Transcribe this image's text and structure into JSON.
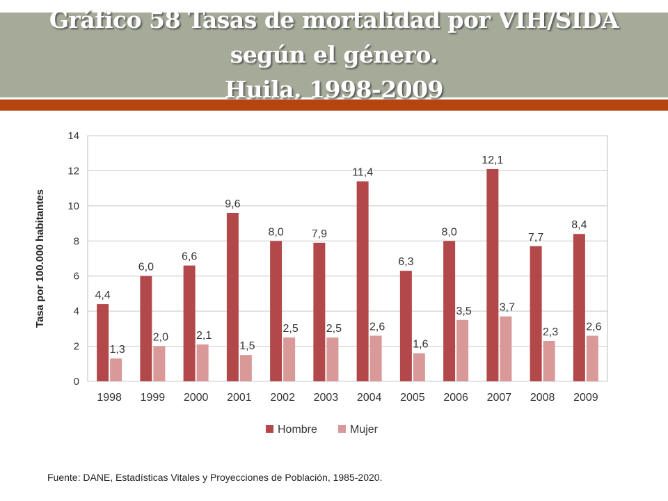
{
  "header": {
    "title_line1": "Gráfico 58 Tasas de mortalidad por VIH/SIDA según el género.",
    "title_line2": "Huila.  1998-2009"
  },
  "colors": {
    "header_bg": "#a6ab99",
    "accent": "#b5440f",
    "hombre": "#b2484a",
    "mujer": "#d99998"
  },
  "chart_data": {
    "type": "bar",
    "categories": [
      "1998",
      "1999",
      "2000",
      "2001",
      "2002",
      "2003",
      "2004",
      "2005",
      "2006",
      "2007",
      "2008",
      "2009"
    ],
    "series": [
      {
        "name": "Hombre",
        "values": [
          4.4,
          6.0,
          6.6,
          9.6,
          8.0,
          7.9,
          11.4,
          6.3,
          8.0,
          12.1,
          7.7,
          8.4
        ],
        "labels": [
          "4,4",
          "6,0",
          "6,6",
          "9,6",
          "8,0",
          "7,9",
          "11,4",
          "6,3",
          "8,0",
          "12,1",
          "7,7",
          "8,4"
        ]
      },
      {
        "name": "Mujer",
        "values": [
          1.3,
          2.0,
          2.1,
          1.5,
          2.5,
          2.5,
          2.6,
          1.6,
          3.5,
          3.7,
          2.3,
          2.6
        ],
        "labels": [
          "1,3",
          "2,0",
          "2,1",
          "1,5",
          "2,5",
          "2,5",
          "2,6",
          "1,6",
          "3,5",
          "3,7",
          "2,3",
          "2,6"
        ]
      }
    ],
    "ylabel": "Tasa por 100.000 habitantes",
    "ylim": [
      0,
      14
    ],
    "yticks": [
      "0",
      "2",
      "4",
      "6",
      "8",
      "10",
      "12",
      "14"
    ],
    "grid": true,
    "legend": "bottom"
  },
  "footer": {
    "source": "Fuente: DANE, Estadísticas Vitales y Proyecciones de Población, 1985-2020."
  }
}
